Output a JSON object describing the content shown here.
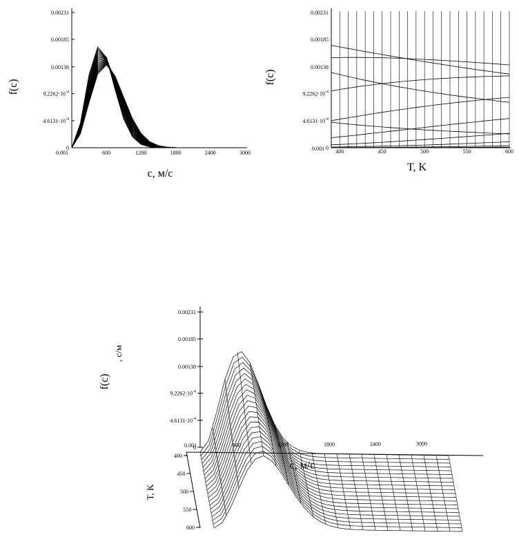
{
  "chart_data": [
    {
      "type": "line",
      "view": "f(c) vs c, family of curves over T",
      "ylabel": "f(c)",
      "xlabel": "c, м/с",
      "xlim": [
        0.001,
        3000
      ],
      "ylim": [
        0,
        0.00231
      ],
      "x_ticks": [
        "0.001",
        "600",
        "1200",
        "1800",
        "2400",
        "3000"
      ],
      "y_ticks": [
        "0",
        "4.6131·10",
        "9.2262·10",
        "0.00138",
        "0.00185",
        "0.00231"
      ],
      "y_tick_exp": "-4",
      "series_param": {
        "name": "T",
        "from": 400,
        "to": 600,
        "count": 21
      },
      "grid": false
    },
    {
      "type": "line",
      "view": "f(c) vs T, family of curves over c",
      "ylabel": "f(c)",
      "xlabel": "T, K",
      "xlim": [
        390,
        600
      ],
      "ylim": [
        0,
        0.00231
      ],
      "x_ticks": [
        "400",
        "450",
        "500",
        "550",
        "600"
      ],
      "y_ticks": [
        "0",
        "4.6131·10",
        "9.2262·10",
        "0.00138",
        "0.00185",
        "0.00231"
      ],
      "y_tick_exp": "-4",
      "origin_label": "0.001",
      "grid": true
    },
    {
      "type": "surface",
      "view": "3D surface f(c, T)",
      "zlabel": "f(c)",
      "zunit": ", с/м",
      "xlabel": "c, м/с",
      "ylabel": "T, K",
      "x_ticks": [
        "0.001",
        "600",
        "1200",
        "1800",
        "2400",
        "3000"
      ],
      "y_ticks": [
        "400",
        "450",
        "500",
        "550",
        "600"
      ],
      "z_ticks": [
        "0",
        "4.6131·10",
        "9.2262·10",
        "0.00138",
        "0.00185",
        "0.00231"
      ],
      "z_tick_exp": "-4",
      "zlim": [
        0,
        0.00231
      ]
    }
  ]
}
